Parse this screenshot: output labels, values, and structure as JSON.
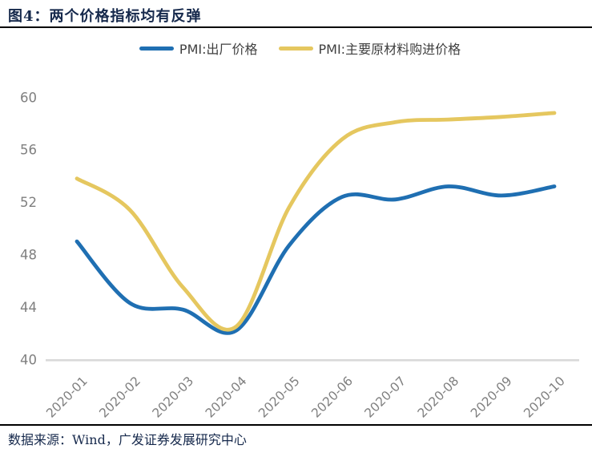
{
  "header": {
    "title": "图4：两个价格指标均有反弹"
  },
  "legend": {
    "items": [
      {
        "label": "PMI:出厂价格",
        "color": "#1F6FB2",
        "icon": "line-swatch"
      },
      {
        "label": "PMI:主要原材料购进价格",
        "color": "#E5C75F",
        "icon": "line-swatch"
      }
    ]
  },
  "footer": {
    "source": "数据来源：Wind，广发证券发展研究中心"
  },
  "colors": {
    "title_text": "#16294C",
    "tick_text": "#7F7F7F",
    "axis_line": "#D9D9D9",
    "rule_line": "#000000"
  },
  "chart_data": {
    "type": "line",
    "title": "两个价格指标均有反弹",
    "categories": [
      "2020-01",
      "2020-02",
      "2020-03",
      "2020-04",
      "2020-05",
      "2020-06",
      "2020-07",
      "2020-08",
      "2020-09",
      "2020-10"
    ],
    "series": [
      {
        "name": "PMI:出厂价格",
        "color": "#1F6FB2",
        "values": [
          49.0,
          44.3,
          43.8,
          42.2,
          48.7,
          52.4,
          52.2,
          53.2,
          52.5,
          53.2
        ]
      },
      {
        "name": "PMI:主要原材料购进价格",
        "color": "#E5C75F",
        "values": [
          53.8,
          51.4,
          45.5,
          42.5,
          51.6,
          56.8,
          58.1,
          58.3,
          58.5,
          58.8
        ]
      }
    ],
    "xlabel": "",
    "ylabel": "",
    "ylim": [
      40,
      60
    ],
    "yticks": [
      40,
      44,
      48,
      52,
      56,
      60
    ],
    "grid": false,
    "smooth": true,
    "legend_position": "top",
    "x_tick_rotation": 45
  }
}
